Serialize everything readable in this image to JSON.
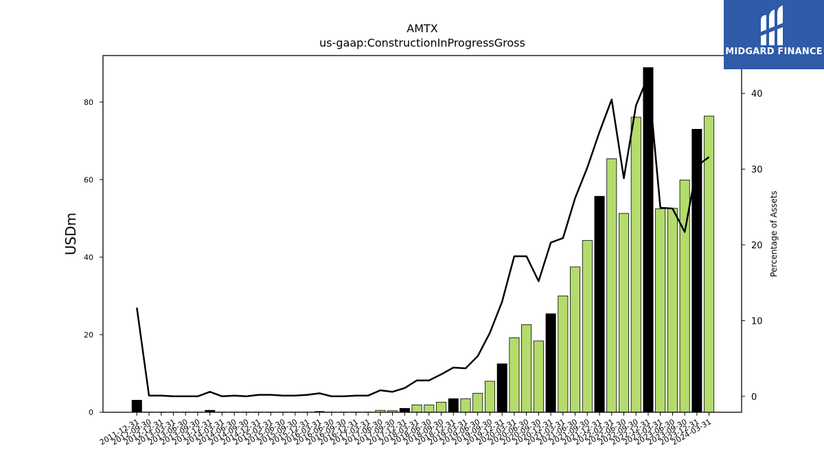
{
  "chart_data": {
    "type": "bar",
    "title": "AMTX",
    "subtitle": "us-gaap:ConstructionInProgressGross",
    "ylabel": "USDm",
    "y2label": "Percentage of Assets",
    "ylim": [
      0,
      92
    ],
    "y2lim": [
      -2.1,
      45.0
    ],
    "y_ticks": [
      0,
      20,
      40,
      60,
      80
    ],
    "y2_ticks": [
      0,
      10,
      20,
      30,
      40
    ],
    "categories": [
      "2011-12-31",
      "2012-09-30",
      "2012-12-31",
      "2013-03-31",
      "2013-06-30",
      "2013-09-30",
      "2013-12-31",
      "2014-03-31",
      "2014-06-30",
      "2014-09-30",
      "2014-12-31",
      "2015-03-31",
      "2015-06-30",
      "2015-09-30",
      "2015-12-31",
      "2016-03-31",
      "2016-06-30",
      "2016-09-30",
      "2016-12-31",
      "2017-03-31",
      "2017-06-30",
      "2017-09-30",
      "2017-12-31",
      "2018-03-31",
      "2018-06-30",
      "2018-09-30",
      "2018-12-31",
      "2019-03-31",
      "2019-06-30",
      "2019-09-30",
      "2019-12-31",
      "2020-03-31",
      "2020-06-30",
      "2020-09-30",
      "2020-12-31",
      "2021-03-31",
      "2021-06-30",
      "2021-09-30",
      "2021-12-31",
      "2022-03-31",
      "2022-06-30",
      "2022-09-30",
      "2022-12-31",
      "2023-03-31",
      "2023-06-30",
      "2023-09-30",
      "2023-12-31",
      "2024-03-31"
    ],
    "series": [
      {
        "kind": "bar",
        "values": [
          3.1,
          0.05,
          0.05,
          0.05,
          0.05,
          0.05,
          0.5,
          0.05,
          0.05,
          0.05,
          0.05,
          0.05,
          0.05,
          0.05,
          0.05,
          0.2,
          0.05,
          0.05,
          0.05,
          0.05,
          0.5,
          0.4,
          1.0,
          1.9,
          1.9,
          2.6,
          3.5,
          3.5,
          4.9,
          8.0,
          12.5,
          19.2,
          22.6,
          18.4,
          25.4,
          30.0,
          37.5,
          44.3,
          55.7,
          65.4,
          51.3,
          76.1,
          88.9,
          52.5,
          52.6,
          59.9,
          73.0,
          76.4
        ],
        "colors": [
          "#000000",
          "#b3dc6c",
          "#b3dc6c",
          "#b3dc6c",
          "#b3dc6c",
          "#b3dc6c",
          "#000000",
          "#b3dc6c",
          "#b3dc6c",
          "#b3dc6c",
          "#b3dc6c",
          "#b3dc6c",
          "#b3dc6c",
          "#b3dc6c",
          "#b3dc6c",
          "#000000",
          "#b3dc6c",
          "#b3dc6c",
          "#b3dc6c",
          "#b3dc6c",
          "#b3dc6c",
          "#b3dc6c",
          "#000000",
          "#b3dc6c",
          "#b3dc6c",
          "#b3dc6c",
          "#000000",
          "#b3dc6c",
          "#b3dc6c",
          "#b3dc6c",
          "#000000",
          "#b3dc6c",
          "#b3dc6c",
          "#b3dc6c",
          "#000000",
          "#b3dc6c",
          "#b3dc6c",
          "#b3dc6c",
          "#000000",
          "#b3dc6c",
          "#b3dc6c",
          "#b3dc6c",
          "#000000",
          "#b3dc6c",
          "#b3dc6c",
          "#b3dc6c",
          "#000000",
          "#b3dc6c"
        ]
      },
      {
        "kind": "line",
        "axis": "right",
        "color": "#000000",
        "values": [
          11.7,
          0.1,
          0.1,
          0.0,
          0.0,
          0.0,
          0.6,
          0.0,
          0.1,
          0.0,
          0.2,
          0.2,
          0.1,
          0.1,
          0.2,
          0.4,
          0.0,
          0.0,
          0.1,
          0.1,
          0.8,
          0.6,
          1.1,
          2.1,
          2.1,
          2.9,
          3.8,
          3.7,
          5.3,
          8.4,
          12.5,
          18.5,
          18.5,
          15.2,
          20.3,
          20.9,
          26.2,
          30.2,
          34.9,
          39.2,
          28.8,
          38.4,
          42.3,
          24.9,
          24.8,
          21.7,
          30.4,
          31.6
        ]
      }
    ],
    "grid": false
  },
  "logo": {
    "text": "MIDGARD FINANCE"
  }
}
